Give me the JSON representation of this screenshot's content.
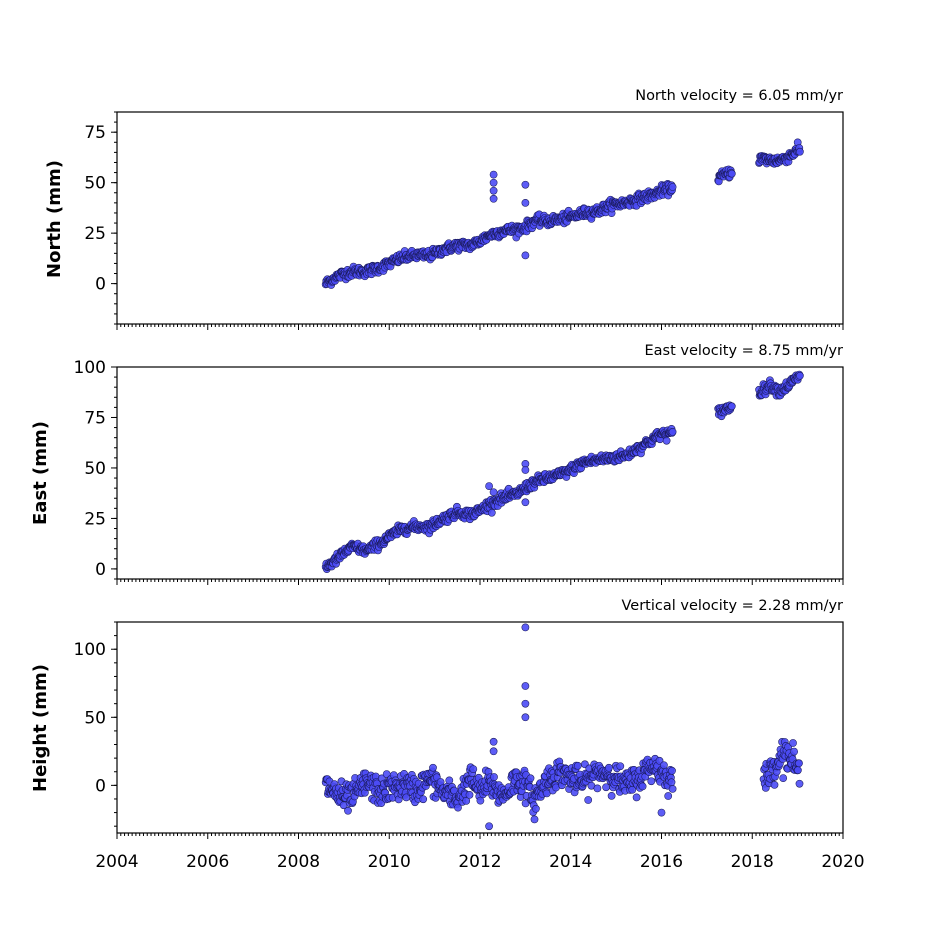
{
  "chart_data": [
    {
      "type": "scatter",
      "title": "North velocity = 6.05 mm/yr",
      "ylabel": "North (mm)",
      "xlim": [
        2004,
        2020
      ],
      "ylim": [
        -20,
        85
      ],
      "yticks": [
        0,
        25,
        50,
        75
      ],
      "series": [
        {
          "x": [
            2008.6,
            2008.8,
            2009.0,
            2009.2,
            2009.5,
            2009.8,
            2010.0,
            2010.3,
            2010.6,
            2010.9,
            2011.2,
            2011.5,
            2011.8,
            2012.0,
            2012.2,
            2012.5,
            2012.8,
            2013.0,
            2013.2,
            2013.5,
            2013.8,
            2014.0,
            2014.3,
            2014.6,
            2014.9,
            2015.2,
            2015.5,
            2015.8,
            2016.0,
            2016.2,
            2017.3,
            2017.5,
            2018.2,
            2018.4,
            2018.6,
            2018.8,
            2019.0
          ],
          "y": [
            0,
            3,
            5,
            6,
            6,
            8,
            10,
            13,
            14,
            14,
            17,
            19,
            19,
            21,
            24,
            26,
            27,
            28,
            31,
            31,
            32,
            33,
            35,
            36,
            39,
            40,
            42,
            44,
            46,
            47,
            53,
            55,
            62,
            61,
            61,
            63,
            66
          ]
        }
      ],
      "outliers": {
        "x": [
          2012.3,
          2012.3,
          2012.3,
          2012.3,
          2013.0,
          2013.0,
          2013.0
        ],
        "y": [
          54,
          50,
          46,
          42,
          49,
          40,
          14
        ]
      }
    },
    {
      "type": "scatter",
      "title": "East velocity = 8.75 mm/yr",
      "ylabel": "East (mm)",
      "xlim": [
        2004,
        2020
      ],
      "ylim": [
        -5,
        100
      ],
      "yticks": [
        0,
        25,
        50,
        75,
        100
      ],
      "series": [
        {
          "x": [
            2008.6,
            2008.8,
            2009.0,
            2009.2,
            2009.5,
            2009.8,
            2010.0,
            2010.3,
            2010.6,
            2010.9,
            2011.2,
            2011.5,
            2011.8,
            2012.0,
            2012.2,
            2012.5,
            2012.8,
            2013.0,
            2013.2,
            2013.5,
            2013.8,
            2014.0,
            2014.3,
            2014.6,
            2014.9,
            2015.2,
            2015.5,
            2015.8,
            2016.0,
            2016.2,
            2017.3,
            2017.5,
            2018.2,
            2018.4,
            2018.6,
            2018.8,
            2019.0
          ],
          "y": [
            1,
            4,
            8,
            11,
            9,
            13,
            16,
            20,
            21,
            21,
            25,
            28,
            27,
            29,
            32,
            35,
            37,
            40,
            43,
            45,
            47,
            49,
            53,
            54,
            55,
            56,
            60,
            64,
            67,
            67,
            78,
            80,
            88,
            91,
            88,
            91,
            95
          ]
        }
      ],
      "outliers": {
        "x": [
          2012.2,
          2012.3,
          2013.0,
          2013.0,
          2013.0
        ],
        "y": [
          41,
          38,
          52,
          49,
          33
        ]
      }
    },
    {
      "type": "scatter",
      "title": "Vertical velocity = 2.28 mm/yr",
      "ylabel": "Height (mm)",
      "xlim": [
        2004,
        2020
      ],
      "ylim": [
        -35,
        120
      ],
      "yticks": [
        0,
        50,
        100
      ],
      "xticks": [
        2004,
        2006,
        2008,
        2010,
        2012,
        2014,
        2016,
        2018,
        2020
      ],
      "series": [
        {
          "x": [
            2008.6,
            2008.8,
            2009.0,
            2009.2,
            2009.5,
            2009.8,
            2010.0,
            2010.3,
            2010.6,
            2010.9,
            2011.2,
            2011.5,
            2011.8,
            2012.0,
            2012.2,
            2012.5,
            2012.8,
            2013.0,
            2013.2,
            2013.5,
            2013.8,
            2014.0,
            2014.3,
            2014.6,
            2014.9,
            2015.2,
            2015.5,
            2015.8,
            2016.0,
            2016.2,
            2018.3,
            2018.5,
            2018.7,
            2018.9,
            2019.0
          ],
          "y": [
            0,
            -5,
            -10,
            -8,
            2,
            -5,
            -2,
            0,
            -3,
            5,
            -5,
            -10,
            5,
            -5,
            2,
            -8,
            5,
            0,
            -10,
            5,
            10,
            5,
            2,
            10,
            8,
            0,
            5,
            15,
            10,
            5,
            5,
            15,
            25,
            18,
            10
          ]
        }
      ],
      "outliers": {
        "x": [
          2012.3,
          2012.3,
          2012.2,
          2013.0,
          2013.0,
          2013.0,
          2013.0,
          2013.2,
          2016.0
        ],
        "y": [
          32,
          25,
          -30,
          116,
          73,
          60,
          50,
          -25,
          -20
        ]
      }
    }
  ]
}
